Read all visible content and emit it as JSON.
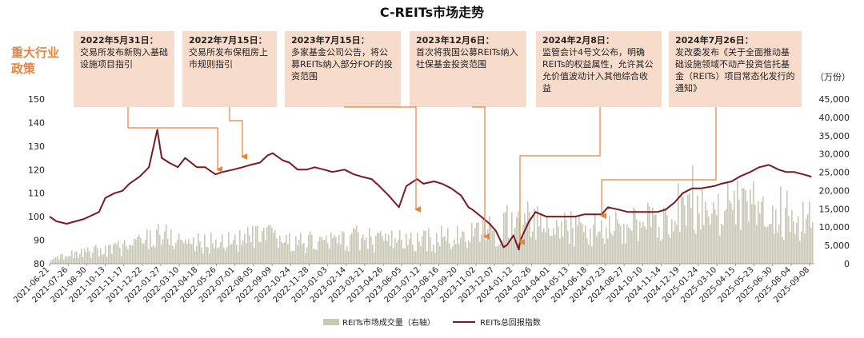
{
  "title": "C-REITs市场走势",
  "policy_label": "重大行业政策",
  "unit_label": "（万份）",
  "colors": {
    "line": "#7a1a22",
    "bars": "#c8c9b2",
    "arrow": "#e8823a",
    "box": "#f8dccb"
  },
  "policies": [
    {
      "date": "2022年5月31日：",
      "text": "交易所发布新购入基础设施项目指引"
    },
    {
      "date": "2022年7月15日：",
      "text": "交易所发布保租房上市规则指引"
    },
    {
      "date": "2023年7月15日：",
      "text": "多家基金公司公告，将公募REITs纳入部分FOF的投资范围"
    },
    {
      "date": "2023年12月6日：",
      "text": "首次将我国公募REITs纳入社保基金投资范围"
    },
    {
      "date": "2024年2月8日：",
      "text": "监管会计4号文公布，明确REITs的权益属性，允许其公允价值波动计入其他综合收益"
    },
    {
      "date": "2024年7月26日：",
      "text": "发改委发布《关于全面推动基础设施领域不动产投资信托基金（REITs）项目常态化发行的通知》"
    }
  ],
  "chart_data": {
    "type": "line+bar",
    "title": "C-REITs市场走势",
    "x_ticks": [
      "2021-06-21",
      "2021-07-26",
      "2021-08-30",
      "2021-10-13",
      "2021-11-17",
      "2021-12-22",
      "2022-01-27",
      "2022-03-10",
      "2022-04-18",
      "2022-05-26",
      "2022-07-01",
      "2022-08-05",
      "2022-09-09",
      "2022-10-24",
      "2022-11-28",
      "2023-01-03",
      "2023-02-14",
      "2023-03-21",
      "2023-04-26",
      "2023-06-05",
      "2023-07-12",
      "2023-08-16",
      "2023-09-20",
      "2023-11-02",
      "2023-12-07",
      "2024-01-12",
      "2024-02-26",
      "2024-04-01",
      "2024-05-13",
      "2024-06-18",
      "2024-07-23",
      "2024-08-27",
      "2024-10-10",
      "2024-11-14",
      "2024-12-19",
      "2025-01-24",
      "2025-03-10",
      "2025-04-15",
      "2025-05-23",
      "2025-06-30",
      "2025-08-04",
      "2025-09-08"
    ],
    "y_left": {
      "range": [
        80,
        150
      ],
      "ticks": [
        80,
        90,
        100,
        110,
        120,
        130,
        140,
        150
      ]
    },
    "y_right": {
      "range": [
        0,
        45000
      ],
      "ticks": [
        "0",
        "5,000",
        "10,000",
        "15,000",
        "20,000",
        "25,000",
        "30,000",
        "35,000",
        "40,000",
        "45,000"
      ],
      "unit": "万份"
    },
    "series": [
      {
        "name": "REITs总回报指数",
        "axis": "left",
        "style": "line",
        "x": [
          "2021-06-21",
          "2021-07-05",
          "2021-07-26",
          "2021-08-30",
          "2021-09-30",
          "2021-10-13",
          "2021-11-01",
          "2021-11-17",
          "2021-12-01",
          "2021-12-22",
          "2022-01-10",
          "2022-01-27",
          "2022-02-05",
          "2022-02-20",
          "2022-03-10",
          "2022-03-25",
          "2022-04-18",
          "2022-05-05",
          "2022-05-26",
          "2022-06-10",
          "2022-07-01",
          "2022-07-20",
          "2022-08-05",
          "2022-08-25",
          "2022-09-09",
          "2022-09-20",
          "2022-10-10",
          "2022-10-24",
          "2022-11-10",
          "2022-11-28",
          "2022-12-15",
          "2023-01-03",
          "2023-01-20",
          "2023-02-14",
          "2023-03-05",
          "2023-03-21",
          "2023-04-10",
          "2023-04-26",
          "2023-05-15",
          "2023-06-05",
          "2023-06-20",
          "2023-07-12",
          "2023-07-25",
          "2023-08-16",
          "2023-09-01",
          "2023-09-20",
          "2023-10-10",
          "2023-10-25",
          "2023-11-02",
          "2023-11-20",
          "2023-12-07",
          "2023-12-20",
          "2024-01-05",
          "2024-01-12",
          "2024-01-25",
          "2024-02-05",
          "2024-02-08",
          "2024-02-26",
          "2024-03-10",
          "2024-04-01",
          "2024-04-20",
          "2024-05-13",
          "2024-05-30",
          "2024-06-18",
          "2024-07-05",
          "2024-07-23",
          "2024-08-05",
          "2024-08-27",
          "2024-09-15",
          "2024-10-10",
          "2024-10-25",
          "2024-11-14",
          "2024-12-01",
          "2024-12-19",
          "2025-01-05",
          "2025-01-24",
          "2025-02-10",
          "2025-03-10",
          "2025-03-25",
          "2025-04-15",
          "2025-05-01",
          "2025-05-23",
          "2025-06-10",
          "2025-06-30",
          "2025-07-10",
          "2025-07-20",
          "2025-08-04",
          "2025-08-20",
          "2025-09-08",
          "2025-09-25"
        ],
        "values": [
          100,
          98,
          97,
          99,
          102,
          108,
          110,
          111,
          114,
          117,
          121,
          137,
          125,
          123,
          121,
          125,
          121,
          121,
          118,
          119,
          120,
          121,
          122,
          123,
          126,
          127,
          124,
          123,
          120,
          120,
          121,
          120,
          119,
          120,
          118,
          117,
          116,
          113,
          109,
          104,
          113,
          116,
          114,
          115,
          114,
          112,
          109,
          104,
          103,
          100,
          97,
          94,
          87,
          88,
          92,
          86,
          90,
          98,
          102,
          100,
          100,
          100,
          100,
          101,
          101,
          101,
          104,
          103,
          102,
          102,
          102,
          102,
          103,
          106,
          110,
          112,
          112,
          113,
          114,
          115,
          117,
          119,
          121,
          122,
          121,
          120,
          119,
          119,
          118,
          117
        ]
      },
      {
        "name": "REITs市场成交量（右轴）",
        "axis": "right",
        "style": "bar",
        "x": [
          "2021-06-21",
          "2021-08-01",
          "2021-10-01",
          "2021-12-01",
          "2022-01-27",
          "2022-03-01",
          "2022-05-01",
          "2022-07-01",
          "2022-09-01",
          "2022-11-01",
          "2023-01-01",
          "2023-03-01",
          "2023-05-01",
          "2023-07-01",
          "2023-09-01",
          "2023-11-01",
          "2024-01-01",
          "2024-02-26",
          "2024-04-01",
          "2024-06-01",
          "2024-08-01",
          "2024-10-01",
          "2024-12-01",
          "2025-01-24",
          "2025-03-10",
          "2025-05-01",
          "2025-07-01",
          "2025-09-08",
          "2025-09-25"
        ],
        "values": [
          2000,
          2500,
          3500,
          5000,
          8500,
          7000,
          5500,
          6500,
          7500,
          6000,
          6000,
          7000,
          6500,
          6000,
          7000,
          7500,
          10500,
          12000,
          9500,
          10000,
          9500,
          10500,
          13000,
          18000,
          16500,
          15500,
          14500,
          13500,
          13000
        ]
      }
    ]
  }
}
